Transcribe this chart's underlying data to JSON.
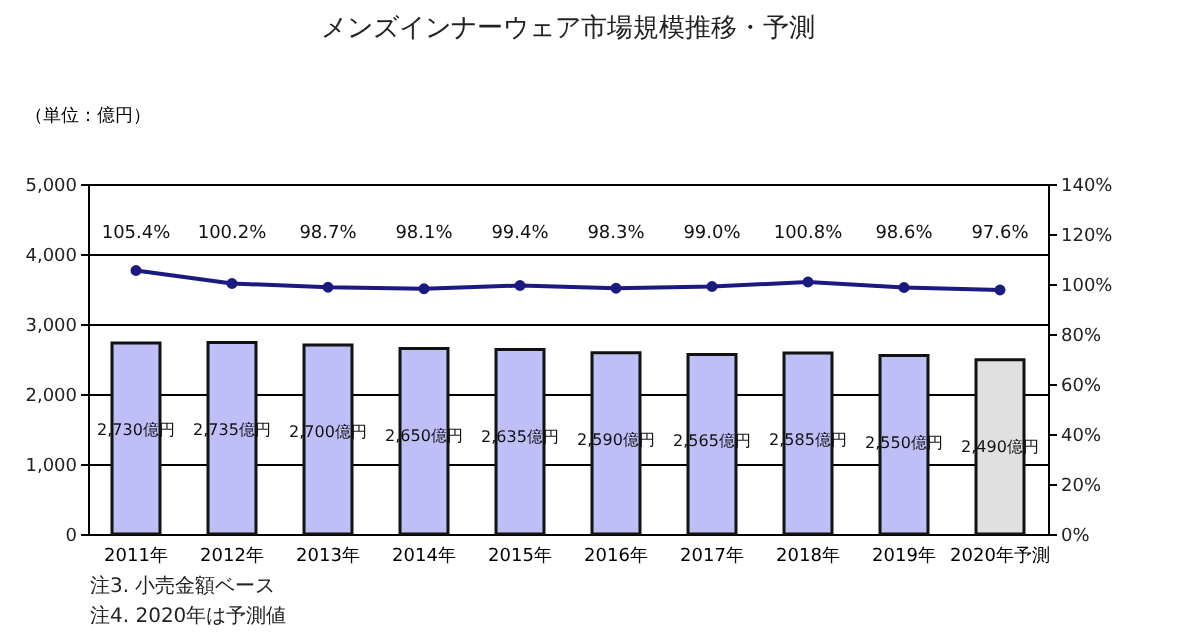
{
  "chart_data": {
    "type": "bar",
    "title": "メンズインナーウェア市場規模推移・予測",
    "ylabel": "（単位：億円）",
    "categories": [
      "2011年",
      "2012年",
      "2013年",
      "2014年",
      "2015年",
      "2016年",
      "2017年",
      "2018年",
      "2019年",
      "2020年予測"
    ],
    "series": [
      {
        "colors": [
          "#bfbff8",
          "#bfbff8",
          "#bfbff8",
          "#bfbff8",
          "#bfbff8",
          "#bfbff8",
          "#bfbff8",
          "#bfbff8",
          "#bfbff8",
          "#e0e0e0"
        ],
        "values": [
          2730,
          2735,
          2700,
          2650,
          2635,
          2590,
          2565,
          2585,
          2550,
          2490
        ],
        "value_labels": [
          "2,730億円",
          "2,735億円",
          "2,700億円",
          "2,650億円",
          "2,635億円",
          "2,590億円",
          "2,565億円",
          "2,585億円",
          "2,550億円",
          "2,490億円"
        ]
      },
      {
        "type": "line",
        "axis": "y2",
        "color": "#1a1a80",
        "marker": "circle",
        "values": [
          105.4,
          100.2,
          98.7,
          98.1,
          99.4,
          98.3,
          99.0,
          100.8,
          98.6,
          97.6
        ],
        "value_labels": [
          "105.4%",
          "100.2%",
          "98.7%",
          "98.1%",
          "99.4%",
          "98.3%",
          "99.0%",
          "100.8%",
          "98.6%",
          "97.6%"
        ]
      }
    ],
    "ylim": [
      0,
      5000
    ],
    "yticks": [
      {
        "value": 0,
        "label": "0"
      },
      {
        "value": 1000,
        "label": "1,000"
      },
      {
        "value": 2000,
        "label": "2,000"
      },
      {
        "value": 3000,
        "label": "3,000"
      },
      {
        "value": 4000,
        "label": "4,000"
      },
      {
        "value": 5000,
        "label": "5,000"
      }
    ],
    "y2lim": [
      0,
      140
    ],
    "y2ticks": [
      {
        "value": 0,
        "label": "0%"
      },
      {
        "value": 20,
        "label": "20%"
      },
      {
        "value": 40,
        "label": "40%"
      },
      {
        "value": 60,
        "label": "60%"
      },
      {
        "value": 80,
        "label": "80%"
      },
      {
        "value": 100,
        "label": "100%"
      },
      {
        "value": 120,
        "label": "120%"
      },
      {
        "value": 140,
        "label": "140%"
      }
    ],
    "grid": "y",
    "annotations": [
      "注3. 小売金額ベース",
      "注4. 2020年は予測値"
    ]
  }
}
